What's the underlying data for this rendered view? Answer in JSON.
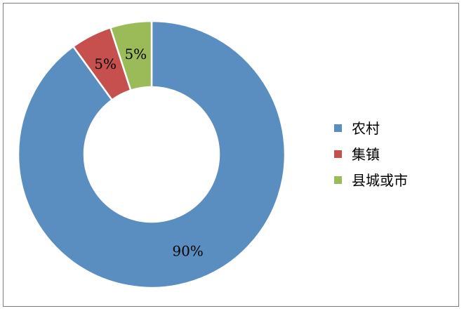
{
  "chart_data": {
    "type": "pie",
    "variant": "donut",
    "title": "",
    "categories": [
      "农村",
      "集镇",
      "县城或市"
    ],
    "values": [
      90,
      5,
      5
    ],
    "data_labels": [
      "90%",
      "5%",
      "5%"
    ],
    "colors": [
      "#5B8EC0",
      "#C6504E",
      "#9BBB59"
    ],
    "legend": {
      "placement": "right",
      "entries": [
        "农村",
        "集镇",
        "县城或市"
      ]
    },
    "start_angle": "12 o'clock",
    "direction": "clockwise"
  }
}
